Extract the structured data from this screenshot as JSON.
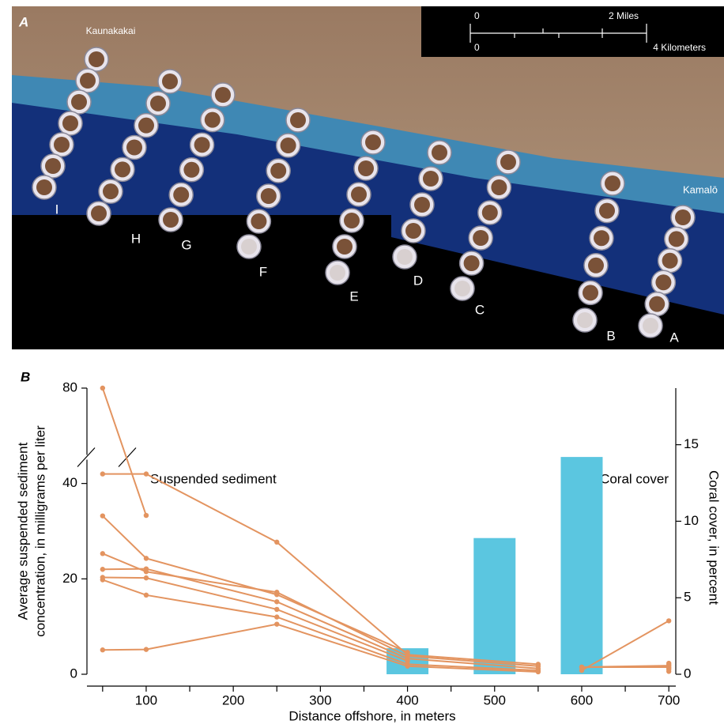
{
  "panel_a": {
    "label": "A",
    "places": [
      "Kaunakakai",
      "Kamalō"
    ],
    "transects": [
      "I",
      "H",
      "G",
      "F",
      "E",
      "D",
      "C",
      "B",
      "A"
    ],
    "scale_bar": {
      "miles_zero": "0",
      "miles": "2 Miles",
      "km_zero": "0",
      "km": "4 Kilometers"
    }
  },
  "chart_data": {
    "type": "combo",
    "panel_label": "B",
    "xlabel": "Distance offshore, in meters",
    "ylabel": [
      "Average suspended sediment",
      "concentration, in milligrams per liter"
    ],
    "y2label": "Coral cover, in percent",
    "annotations": [
      "Suspended sediment",
      "Coral cover"
    ],
    "xlim": [
      32,
      708
    ],
    "xticks": [
      100,
      200,
      300,
      400,
      500,
      600,
      700
    ],
    "xminorticks": [
      50,
      150,
      250,
      350,
      450,
      550,
      650
    ],
    "ylim": [
      0,
      80
    ],
    "y_break": [
      45,
      66
    ],
    "yticks": [
      0,
      20,
      40,
      80
    ],
    "y2lim": [
      0,
      18.7
    ],
    "y2ticks": [
      0,
      5,
      10,
      15
    ],
    "x": [
      50,
      100,
      250,
      400,
      550,
      600,
      700
    ],
    "series": [
      {
        "type": "line",
        "color": "#e39460",
        "values": [
          80,
          33.3,
          null,
          3.3,
          null,
          1.5,
          1.8
        ]
      },
      {
        "type": "line",
        "color": "#e39460",
        "values": [
          42,
          42,
          27.7,
          4.1,
          2.1,
          null,
          1.3
        ]
      },
      {
        "type": "line",
        "color": "#e39460",
        "values": [
          33.2,
          24.3,
          16.7,
          4.6,
          null,
          0.8,
          11.2
        ]
      },
      {
        "type": "line",
        "color": "#e39460",
        "values": [
          25.3,
          21.5,
          17.2,
          3.8,
          1.7,
          null,
          2.0
        ]
      },
      {
        "type": "line",
        "color": "#e39460",
        "values": [
          22,
          22.1,
          15.2,
          3.3,
          1.2,
          null,
          1.0
        ]
      },
      {
        "type": "line",
        "color": "#e39460",
        "values": [
          20.3,
          20.2,
          13.6,
          2.8,
          null,
          1.5,
          1.5
        ]
      },
      {
        "type": "line",
        "color": "#e39460",
        "values": [
          19.8,
          16.6,
          12,
          2.1,
          0.8,
          null,
          2.3
        ]
      },
      {
        "type": "line",
        "color": "#e39460",
        "values": [
          5.1,
          5.2,
          10.5,
          1.7,
          0.5,
          null,
          0.6
        ]
      },
      {
        "type": "bar",
        "axis": "y2",
        "color": "#5bc6e0",
        "x": [
          400,
          500,
          600
        ],
        "values": [
          1.7,
          8.9,
          14.2
        ]
      }
    ]
  }
}
